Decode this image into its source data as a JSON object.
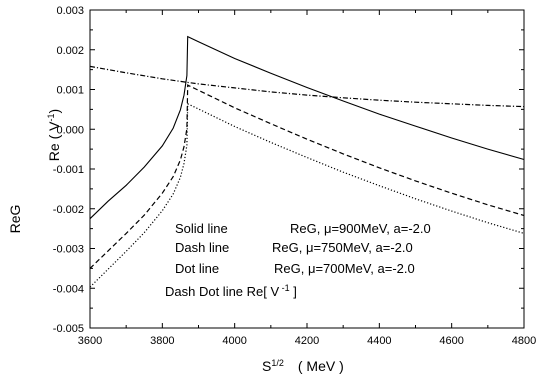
{
  "chart_data": {
    "type": "line",
    "xlabel_main": "S",
    "xlabel_sup": "1/2",
    "xlabel_unit": "( MeV )",
    "ylabel_outer": "ReG",
    "ylabel_inner_main": "Re",
    "ylabel_inner_open": "( V",
    "ylabel_inner_sup": "-1",
    "ylabel_inner_close": ")",
    "xlim": [
      3600,
      4800
    ],
    "ylim": [
      -0.005,
      0.003
    ],
    "xticks": [
      "3600",
      "3800",
      "4000",
      "4200",
      "4400",
      "4600",
      "4800"
    ],
    "yticks": [
      "0.003",
      "0.002",
      "0.001",
      "0.000",
      "-0.001",
      "-0.002",
      "-0.003",
      "-0.004",
      "-0.005"
    ],
    "series": [
      {
        "style": "solid",
        "x": [
          3600,
          3650,
          3700,
          3750,
          3800,
          3830,
          3850,
          3860,
          3868,
          3870,
          3900,
          4000,
          4100,
          4200,
          4300,
          4400,
          4500,
          4600,
          4700,
          4800
        ],
        "y": [
          -0.00225,
          -0.00181,
          -0.00141,
          -0.00095,
          -0.00042,
          3e-05,
          0.00049,
          0.00086,
          0.00135,
          0.00233,
          0.0022,
          0.00178,
          0.00141,
          0.00105,
          0.00071,
          0.00038,
          8e-05,
          -0.00022,
          -0.0005,
          -0.00076
        ]
      },
      {
        "style": "dash",
        "x": [
          3600,
          3650,
          3700,
          3750,
          3800,
          3830,
          3850,
          3860,
          3868,
          3870,
          3900,
          4000,
          4100,
          4200,
          4300,
          4400,
          4500,
          4600,
          4700,
          4800
        ],
        "y": [
          -0.0035,
          -0.00306,
          -0.00262,
          -0.00216,
          -0.00161,
          -0.00119,
          -0.00077,
          -0.00044,
          2e-05,
          0.00111,
          0.00098,
          0.00054,
          0.00014,
          -0.00025,
          -0.00062,
          -0.00097,
          -0.0013,
          -0.00161,
          -0.0019,
          -0.00217
        ]
      },
      {
        "style": "dot",
        "x": [
          3600,
          3650,
          3700,
          3750,
          3800,
          3830,
          3850,
          3860,
          3868,
          3870,
          3900,
          4000,
          4100,
          4200,
          4300,
          4400,
          4500,
          4600,
          4700,
          4800
        ],
        "y": [
          -0.00397,
          -0.00352,
          -0.00307,
          -0.0026,
          -0.00205,
          -0.00163,
          -0.00121,
          -0.00086,
          -0.0004,
          0.00064,
          0.00051,
          7e-05,
          -0.00033,
          -0.00071,
          -0.00108,
          -0.00142,
          -0.00175,
          -0.00206,
          -0.00235,
          -0.00262
        ]
      },
      {
        "style": "dashdot",
        "x": [
          3600,
          3700,
          3800,
          3868,
          3900,
          4000,
          4100,
          4200,
          4300,
          4400,
          4500,
          4600,
          4700,
          4800
        ],
        "y": [
          0.00158,
          0.00142,
          0.00127,
          0.00118,
          0.00114,
          0.00104,
          0.00094,
          0.00086,
          0.00079,
          0.00073,
          0.00068,
          0.00064,
          0.0006,
          0.00057
        ]
      }
    ],
    "legend": [
      {
        "prefix": "Solid line",
        "text": "ReG, ",
        "mu": "μ",
        "rest": "=900MeV, a=-2.0"
      },
      {
        "prefix": "Dash line",
        "text": "ReG, ",
        "mu": "μ",
        "rest": "=750MeV, a=-2.0"
      },
      {
        "prefix": "Dot line",
        "text": "ReG, ",
        "mu": "μ",
        "rest": "=700MeV, a=-2.0"
      },
      {
        "prefix": "Dash Dot line Re[ V",
        "sup": " -1",
        "close": " ]"
      }
    ]
  }
}
